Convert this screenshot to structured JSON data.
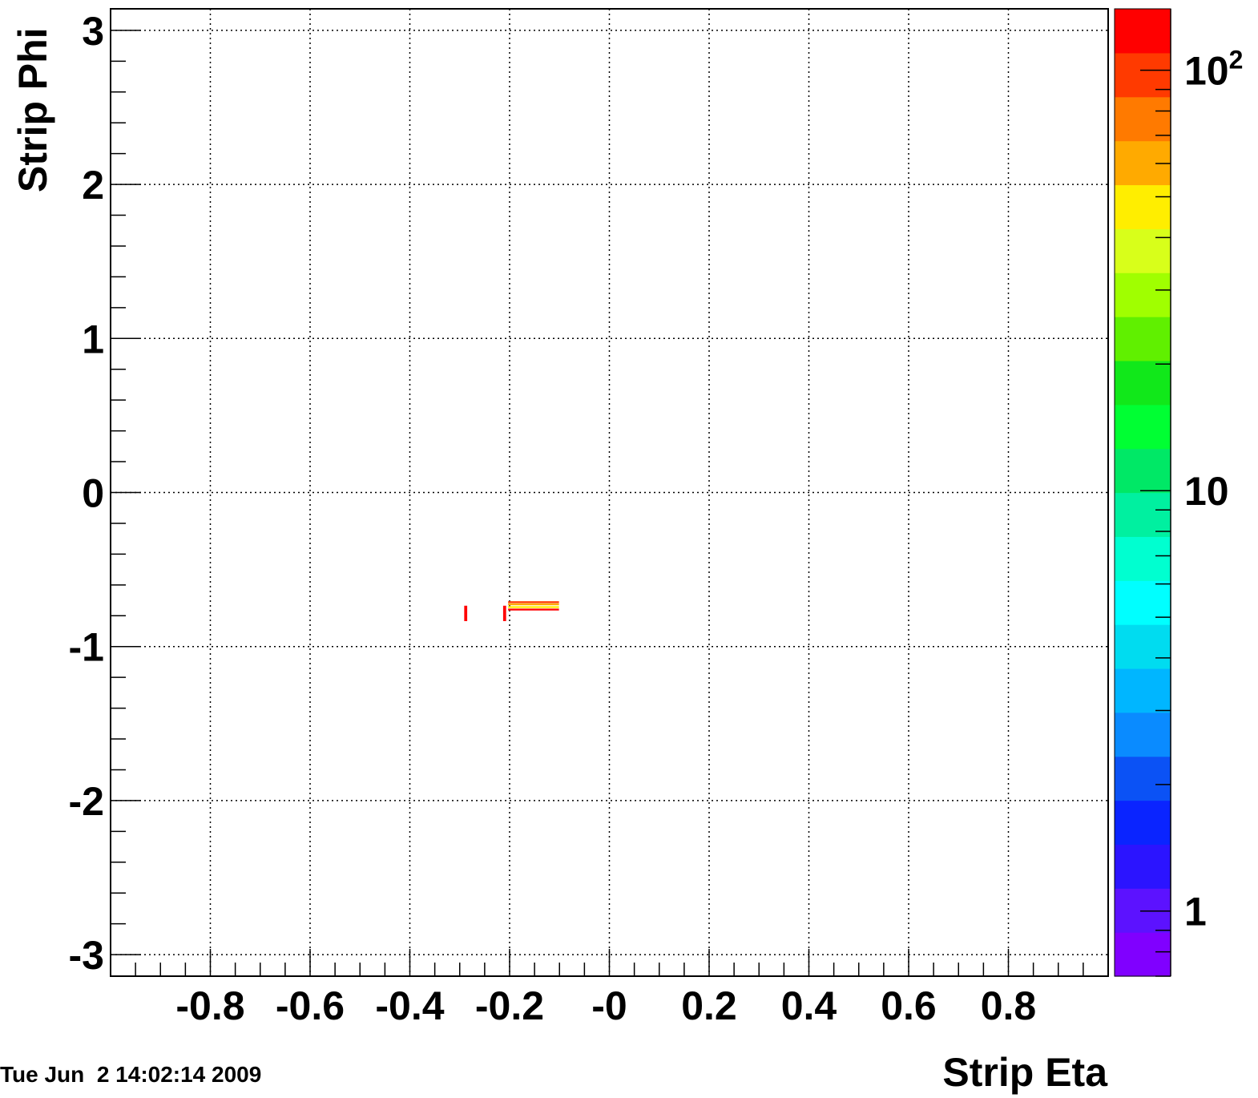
{
  "chart_data": {
    "type": "heatmap",
    "title": "",
    "xlabel": "Strip Eta",
    "ylabel": "Strip Phi",
    "xlim": [
      -1.0,
      1.0
    ],
    "ylim": [
      -3.14,
      3.14
    ],
    "x_ticks": [
      -0.8,
      -0.6,
      -0.4,
      -0.2,
      0,
      0.2,
      0.4,
      0.6,
      0.8
    ],
    "x_tick_labels": [
      "-0.8",
      "-0.6",
      "-0.4",
      "-0.2",
      "-0",
      "0.2",
      "0.4",
      "0.6",
      "0.8"
    ],
    "y_ticks": [
      3,
      2,
      1,
      0,
      -1,
      -2,
      -3
    ],
    "y_tick_labels": [
      "3",
      "2",
      "1",
      "0",
      "-1",
      "-2",
      "-3"
    ],
    "grid": true,
    "colorbar": {
      "scale": "log",
      "range": [
        0.7,
        140
      ],
      "tick_values": [
        1,
        10,
        100
      ],
      "tick_labels": [
        {
          "base": "1",
          "exp": ""
        },
        {
          "base": "10",
          "exp": ""
        },
        {
          "base": "10",
          "exp": "2"
        }
      ],
      "colors": [
        "#8000ff",
        "#5c12ff",
        "#2b14ff",
        "#0a24ff",
        "#0b52f5",
        "#0a8bff",
        "#00b6ff",
        "#00dcf0",
        "#00ffff",
        "#00ffd0",
        "#00f0a0",
        "#00e866",
        "#00ff33",
        "#11e81a",
        "#60f000",
        "#a0ff00",
        "#d8ff1a",
        "#ffee00",
        "#ffaa00",
        "#ff7a00",
        "#ff3a00",
        "#ff0000"
      ]
    },
    "cells": [
      {
        "eta": -0.288,
        "phi": -0.785,
        "d_eta": 0.006,
        "d_phi": 0.1,
        "value": 130
      },
      {
        "eta": -0.21,
        "phi": -0.785,
        "d_eta": 0.006,
        "d_phi": 0.1,
        "value": 130
      },
      {
        "eta": -0.152,
        "phi": -0.712,
        "d_eta": 0.102,
        "d_phi": 0.012,
        "value": 110
      },
      {
        "eta": -0.152,
        "phi": -0.726,
        "d_eta": 0.102,
        "d_phi": 0.012,
        "value": 60
      },
      {
        "eta": -0.152,
        "phi": -0.744,
        "d_eta": 0.102,
        "d_phi": 0.012,
        "value": 45
      },
      {
        "eta": -0.152,
        "phi": -0.76,
        "d_eta": 0.102,
        "d_phi": 0.012,
        "value": 130
      }
    ]
  },
  "footer": {
    "timestamp": "Tue Jun  2 14:02:14 2009"
  }
}
